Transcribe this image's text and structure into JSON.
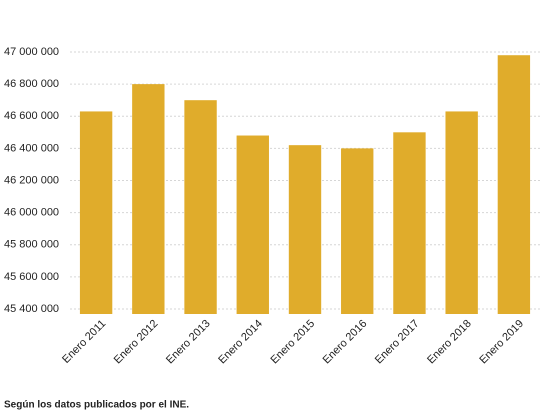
{
  "chart_data": {
    "type": "bar",
    "categories": [
      "Enero 2011",
      "Enero 2012",
      "Enero 2013",
      "Enero 2014",
      "Enero 2015",
      "Enero 2016",
      "Enero 2017",
      "Enero 2018",
      "Enero 2019"
    ],
    "values": [
      46630000,
      46800000,
      46700000,
      46480000,
      46420000,
      46400000,
      46500000,
      46630000,
      46980000
    ],
    "color": "#e0ac2b",
    "ylim": [
      45400000,
      47000000
    ],
    "yticks": [
      {
        "value": 45400000,
        "label": "45 400 000"
      },
      {
        "value": 45600000,
        "label": "45 600 000"
      },
      {
        "value": 45800000,
        "label": "45 800 000"
      },
      {
        "value": 46000000,
        "label": "46 000 000"
      },
      {
        "value": 46200000,
        "label": "46 200 000"
      },
      {
        "value": 46400000,
        "label": "46 400 000"
      },
      {
        "value": 46600000,
        "label": "46 600 000"
      },
      {
        "value": 46800000,
        "label": "46 800 000"
      },
      {
        "value": 47000000,
        "label": "47 000 000"
      }
    ],
    "grid": true,
    "note": "Según los datos publicados por el INE."
  }
}
